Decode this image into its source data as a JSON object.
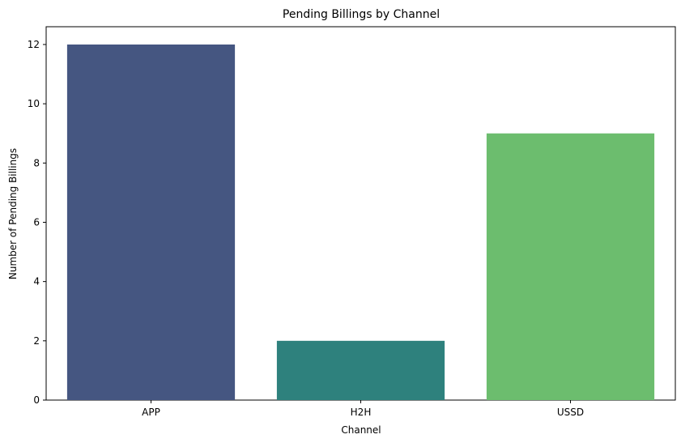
{
  "chart_data": {
    "type": "bar",
    "title": "Pending Billings by Channel",
    "xlabel": "Channel",
    "ylabel": "Number of Pending Billings",
    "categories": [
      "APP",
      "H2H",
      "USSD"
    ],
    "values": [
      12,
      2,
      9
    ],
    "colors": [
      "#443a83",
      "#21908d",
      "#5ec962"
    ],
    "bar_colors": [
      "#455681",
      "#2e817d",
      "#6cbd6e"
    ],
    "ylim": [
      0,
      12.6
    ],
    "yticks": [
      0,
      2,
      4,
      6,
      8,
      10,
      12
    ],
    "grid": false,
    "legend": "none"
  }
}
